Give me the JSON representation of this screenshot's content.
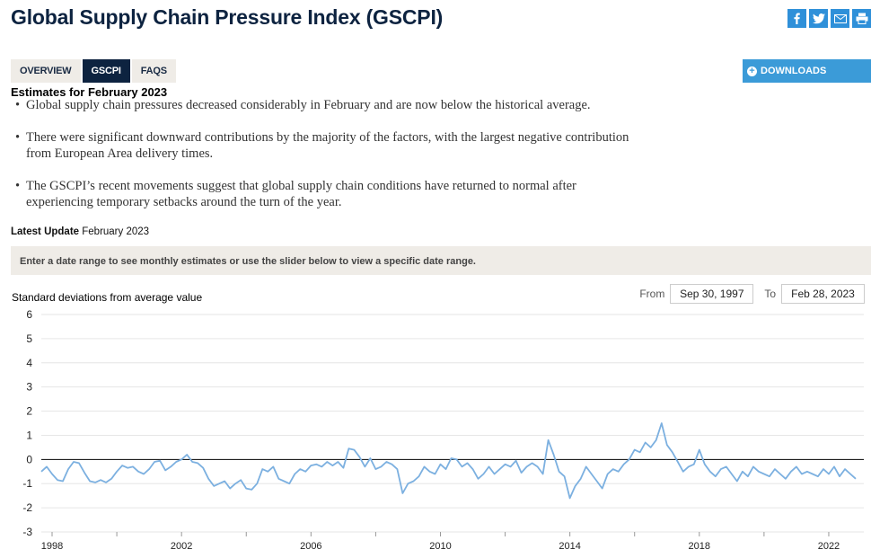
{
  "page": {
    "title": "Global Supply Chain Pressure Index (GSCPI)",
    "share_icons": [
      "facebook-icon",
      "twitter-icon",
      "email-icon",
      "print-icon"
    ],
    "tabs": [
      {
        "label": "OVERVIEW",
        "active": false
      },
      {
        "label": "GSCPI",
        "active": true
      },
      {
        "label": "FAQS",
        "active": false
      }
    ],
    "downloads_label": "DOWNLOADS",
    "estimates_heading": "Estimates for February 2023",
    "bullets": [
      "Global supply chain pressures decreased considerably in February and are now below the historical average.",
      "There were significant downward contributions by the majority of the factors, with the largest negative contribution from European Area delivery times.",
      "The GSCPI’s recent movements suggest that global supply chain conditions have returned to normal after experiencing temporary setbacks around the turn of the year."
    ],
    "latest_update_label": "Latest Update",
    "latest_update_value": "February 2023",
    "instruction": "Enter a date range to see monthly estimates or use the slider below to view a specific date range.",
    "range": {
      "from_label": "From",
      "from_value": "Sep 30, 1997",
      "to_label": "To",
      "to_value": "Feb 28, 2023"
    },
    "colors": {
      "navy": "#0d2340",
      "accent_blue": "#2f90d9",
      "line": "#7cb0e0",
      "tab_bg": "#efece7"
    }
  },
  "chart_data": {
    "type": "line",
    "ylabel": "Standard deviations from average value",
    "ylim": [
      -3,
      6
    ],
    "yticks": [
      6,
      5,
      4,
      3,
      2,
      1,
      0,
      -1,
      -2,
      -3
    ],
    "xlim": [
      "1997-09",
      "2023-02"
    ],
    "xticks": [
      "1998",
      "2000",
      "2002",
      "2004",
      "2006",
      "2008",
      "2010",
      "2012",
      "2014",
      "2016",
      "2018",
      "2020",
      "2022"
    ],
    "xtick_labels": [
      "1998",
      "",
      "2002",
      "",
      "2006",
      "",
      "2010",
      "",
      "2014",
      "",
      "2018",
      "",
      "2022"
    ],
    "grid": true,
    "zero_line": true,
    "series": [
      {
        "color": "#7cb0e0",
        "points": [
          [
            "1997-09",
            -0.5
          ],
          [
            "1997-11",
            -0.3
          ],
          [
            "1998-01",
            -0.6
          ],
          [
            "1998-03",
            -0.85
          ],
          [
            "1998-05",
            -0.9
          ],
          [
            "1998-07",
            -0.4
          ],
          [
            "1998-09",
            -0.1
          ],
          [
            "1998-11",
            -0.15
          ],
          [
            "1999-01",
            -0.55
          ],
          [
            "1999-03",
            -0.9
          ],
          [
            "1999-05",
            -0.95
          ],
          [
            "1999-07",
            -0.85
          ],
          [
            "1999-09",
            -0.95
          ],
          [
            "1999-11",
            -0.8
          ],
          [
            "2000-01",
            -0.5
          ],
          [
            "2000-03",
            -0.25
          ],
          [
            "2000-05",
            -0.35
          ],
          [
            "2000-07",
            -0.3
          ],
          [
            "2000-09",
            -0.5
          ],
          [
            "2000-11",
            -0.6
          ],
          [
            "2001-01",
            -0.4
          ],
          [
            "2001-03",
            -0.1
          ],
          [
            "2001-05",
            -0.05
          ],
          [
            "2001-07",
            -0.45
          ],
          [
            "2001-09",
            -0.3
          ],
          [
            "2001-11",
            -0.1
          ],
          [
            "2002-01",
            0.0
          ],
          [
            "2002-03",
            0.2
          ],
          [
            "2002-05",
            -0.1
          ],
          [
            "2002-07",
            -0.15
          ],
          [
            "2002-09",
            -0.35
          ],
          [
            "2002-11",
            -0.8
          ],
          [
            "2003-01",
            -1.1
          ],
          [
            "2003-03",
            -1.0
          ],
          [
            "2003-05",
            -0.9
          ],
          [
            "2003-07",
            -1.2
          ],
          [
            "2003-09",
            -1.0
          ],
          [
            "2003-11",
            -0.85
          ],
          [
            "2004-01",
            -1.2
          ],
          [
            "2004-03",
            -1.25
          ],
          [
            "2004-05",
            -1.0
          ],
          [
            "2004-07",
            -0.4
          ],
          [
            "2004-09",
            -0.5
          ],
          [
            "2004-11",
            -0.3
          ],
          [
            "2005-01",
            -0.8
          ],
          [
            "2005-03",
            -0.9
          ],
          [
            "2005-05",
            -1.0
          ],
          [
            "2005-07",
            -0.6
          ],
          [
            "2005-09",
            -0.4
          ],
          [
            "2005-11",
            -0.5
          ],
          [
            "2006-01",
            -0.25
          ],
          [
            "2006-03",
            -0.2
          ],
          [
            "2006-05",
            -0.3
          ],
          [
            "2006-07",
            -0.1
          ],
          [
            "2006-09",
            -0.25
          ],
          [
            "2006-11",
            -0.1
          ],
          [
            "2007-01",
            -0.35
          ],
          [
            "2007-03",
            0.45
          ],
          [
            "2007-05",
            0.4
          ],
          [
            "2007-07",
            0.1
          ],
          [
            "2007-09",
            -0.3
          ],
          [
            "2007-11",
            0.05
          ],
          [
            "2008-01",
            -0.4
          ],
          [
            "2008-03",
            -0.3
          ],
          [
            "2008-05",
            -0.1
          ],
          [
            "2008-07",
            -0.2
          ],
          [
            "2008-09",
            -0.4
          ],
          [
            "2008-11",
            -1.4
          ],
          [
            "2009-01",
            -1.0
          ],
          [
            "2009-03",
            -0.9
          ],
          [
            "2009-05",
            -0.7
          ],
          [
            "2009-07",
            -0.3
          ],
          [
            "2009-09",
            -0.5
          ],
          [
            "2009-11",
            -0.6
          ],
          [
            "2010-01",
            -0.2
          ],
          [
            "2010-03",
            -0.4
          ],
          [
            "2010-05",
            0.05
          ],
          [
            "2010-07",
            0.0
          ],
          [
            "2010-09",
            -0.3
          ],
          [
            "2010-11",
            -0.15
          ],
          [
            "2011-01",
            -0.4
          ],
          [
            "2011-03",
            -0.8
          ],
          [
            "2011-05",
            -0.6
          ],
          [
            "2011-07",
            -0.3
          ],
          [
            "2011-09",
            -0.6
          ],
          [
            "2011-11",
            -0.4
          ],
          [
            "2012-01",
            -0.2
          ],
          [
            "2012-03",
            -0.3
          ],
          [
            "2012-05",
            -0.05
          ],
          [
            "2012-07",
            -0.55
          ],
          [
            "2012-09",
            -0.3
          ],
          [
            "2012-11",
            -0.15
          ],
          [
            "2013-01",
            -0.3
          ],
          [
            "2013-03",
            -0.6
          ],
          [
            "2013-05",
            0.8
          ],
          [
            "2013-07",
            0.2
          ],
          [
            "2013-09",
            -0.5
          ],
          [
            "2013-11",
            -0.7
          ],
          [
            "2014-01",
            -1.6
          ],
          [
            "2014-03",
            -1.1
          ],
          [
            "2014-05",
            -0.8
          ],
          [
            "2014-07",
            -0.3
          ],
          [
            "2014-09",
            -0.6
          ],
          [
            "2014-11",
            -0.9
          ],
          [
            "2015-01",
            -1.2
          ],
          [
            "2015-03",
            -0.6
          ],
          [
            "2015-05",
            -0.4
          ],
          [
            "2015-07",
            -0.5
          ],
          [
            "2015-09",
            -0.2
          ],
          [
            "2015-11",
            0.0
          ],
          [
            "2016-01",
            0.4
          ],
          [
            "2016-03",
            0.3
          ],
          [
            "2016-05",
            0.7
          ],
          [
            "2016-07",
            0.5
          ],
          [
            "2016-09",
            0.8
          ],
          [
            "2016-11",
            1.5
          ],
          [
            "2017-01",
            0.6
          ],
          [
            "2017-03",
            0.3
          ],
          [
            "2017-05",
            -0.1
          ],
          [
            "2017-07",
            -0.5
          ],
          [
            "2017-09",
            -0.3
          ],
          [
            "2017-11",
            -0.2
          ],
          [
            "2018-01",
            0.4
          ],
          [
            "2018-03",
            -0.2
          ],
          [
            "2018-05",
            -0.5
          ],
          [
            "2018-07",
            -0.7
          ],
          [
            "2018-09",
            -0.4
          ],
          [
            "2018-11",
            -0.3
          ],
          [
            "2019-01",
            -0.6
          ],
          [
            "2019-03",
            -0.9
          ],
          [
            "2019-05",
            -0.5
          ],
          [
            "2019-07",
            -0.7
          ],
          [
            "2019-09",
            -0.3
          ],
          [
            "2019-11",
            -0.5
          ],
          [
            "2020-01",
            -0.6
          ],
          [
            "2020-03",
            -0.7
          ],
          [
            "2020-05",
            -0.4
          ],
          [
            "2020-07",
            -0.6
          ],
          [
            "2020-09",
            -0.8
          ],
          [
            "2020-11",
            -0.5
          ],
          [
            "2021-01",
            -0.3
          ],
          [
            "2021-03",
            -0.6
          ],
          [
            "2021-05",
            -0.5
          ],
          [
            "2021-07",
            -0.6
          ],
          [
            "2021-09",
            -0.7
          ],
          [
            "2021-11",
            -0.4
          ],
          [
            "2022-01",
            -0.6
          ],
          [
            "2022-03",
            -0.3
          ],
          [
            "2022-05",
            -0.7
          ],
          [
            "2022-07",
            -0.4
          ],
          [
            "2022-09",
            -0.6
          ],
          [
            "2022-11",
            -0.8
          ]
        ]
      }
    ]
  }
}
